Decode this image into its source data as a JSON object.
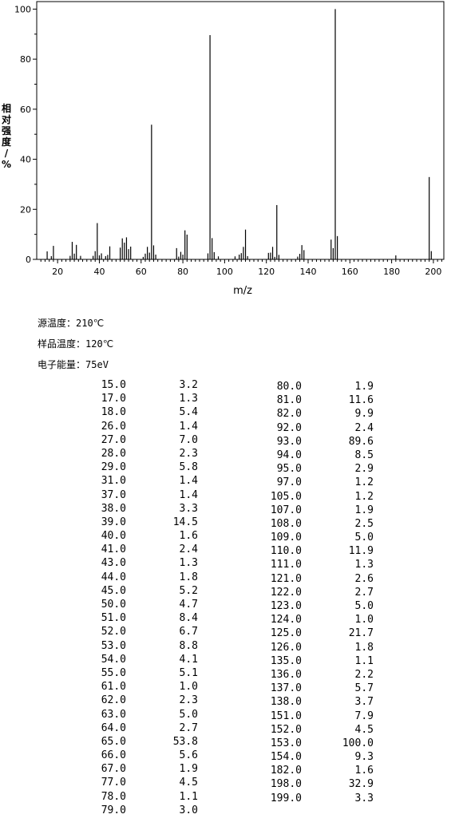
{
  "chart_data": {
    "type": "bar",
    "xlabel": "m/z",
    "ylabel": "相对强度/%",
    "xlim": [
      10,
      205
    ],
    "ylim": [
      0,
      103
    ],
    "xticks": [
      20,
      40,
      60,
      80,
      100,
      120,
      140,
      160,
      180,
      200
    ],
    "yticks": [
      0,
      20,
      40,
      60,
      80,
      100
    ],
    "x": [
      15.0,
      17.0,
      18.0,
      26.0,
      27.0,
      28.0,
      29.0,
      31.0,
      37.0,
      38.0,
      39.0,
      40.0,
      41.0,
      43.0,
      44.0,
      45.0,
      50.0,
      51.0,
      52.0,
      53.0,
      54.0,
      55.0,
      61.0,
      62.0,
      63.0,
      64.0,
      65.0,
      66.0,
      67.0,
      77.0,
      78.0,
      79.0,
      80.0,
      81.0,
      82.0,
      92.0,
      93.0,
      94.0,
      95.0,
      97.0,
      105.0,
      107.0,
      108.0,
      109.0,
      110.0,
      111.0,
      121.0,
      122.0,
      123.0,
      124.0,
      125.0,
      126.0,
      135.0,
      136.0,
      137.0,
      138.0,
      151.0,
      152.0,
      153.0,
      154.0,
      182.0,
      198.0,
      199.0
    ],
    "values": [
      3.2,
      1.3,
      5.4,
      1.4,
      7.0,
      2.3,
      5.8,
      1.4,
      1.4,
      3.3,
      14.5,
      1.6,
      2.4,
      1.3,
      1.8,
      5.2,
      4.7,
      8.4,
      6.7,
      8.8,
      4.1,
      5.1,
      1.0,
      2.3,
      5.0,
      2.7,
      53.8,
      5.6,
      1.9,
      4.5,
      1.1,
      3.0,
      1.9,
      11.6,
      9.9,
      2.4,
      89.6,
      8.5,
      2.9,
      1.2,
      1.2,
      1.9,
      2.5,
      5.0,
      11.9,
      1.3,
      2.6,
      2.7,
      5.0,
      1.0,
      21.7,
      1.8,
      1.1,
      2.2,
      5.7,
      3.7,
      7.9,
      4.5,
      100.0,
      9.3,
      1.6,
      32.9,
      3.3
    ]
  },
  "conditions": {
    "source_temp_label": "源温度：",
    "source_temp_value": "210℃",
    "sample_temp_label": "样品温度：",
    "sample_temp_value": "120℃",
    "electron_energy_label": "电子能量：",
    "electron_energy_value": "75eV"
  },
  "peak_table": {
    "left": [
      [
        "15.0",
        "3.2"
      ],
      [
        "17.0",
        "1.3"
      ],
      [
        "18.0",
        "5.4"
      ],
      [
        "26.0",
        "1.4"
      ],
      [
        "27.0",
        "7.0"
      ],
      [
        "28.0",
        "2.3"
      ],
      [
        "29.0",
        "5.8"
      ],
      [
        "31.0",
        "1.4"
      ],
      [
        "37.0",
        "1.4"
      ],
      [
        "38.0",
        "3.3"
      ],
      [
        "39.0",
        "14.5"
      ],
      [
        "40.0",
        "1.6"
      ],
      [
        "41.0",
        "2.4"
      ],
      [
        "43.0",
        "1.3"
      ],
      [
        "44.0",
        "1.8"
      ],
      [
        "45.0",
        "5.2"
      ],
      [
        "50.0",
        "4.7"
      ],
      [
        "51.0",
        "8.4"
      ],
      [
        "52.0",
        "6.7"
      ],
      [
        "53.0",
        "8.8"
      ],
      [
        "54.0",
        "4.1"
      ],
      [
        "55.0",
        "5.1"
      ],
      [
        "61.0",
        "1.0"
      ],
      [
        "62.0",
        "2.3"
      ],
      [
        "63.0",
        "5.0"
      ],
      [
        "64.0",
        "2.7"
      ],
      [
        "65.0",
        "53.8"
      ],
      [
        "66.0",
        "5.6"
      ],
      [
        "67.0",
        "1.9"
      ],
      [
        "77.0",
        "4.5"
      ],
      [
        "78.0",
        "1.1"
      ],
      [
        "79.0",
        "3.0"
      ]
    ],
    "right": [
      [
        "80.0",
        "1.9"
      ],
      [
        "81.0",
        "11.6"
      ],
      [
        "82.0",
        "9.9"
      ],
      [
        "92.0",
        "2.4"
      ],
      [
        "93.0",
        "89.6"
      ],
      [
        "94.0",
        "8.5"
      ],
      [
        "95.0",
        "2.9"
      ],
      [
        "97.0",
        "1.2"
      ],
      [
        "105.0",
        "1.2"
      ],
      [
        "107.0",
        "1.9"
      ],
      [
        "108.0",
        "2.5"
      ],
      [
        "109.0",
        "5.0"
      ],
      [
        "110.0",
        "11.9"
      ],
      [
        "111.0",
        "1.3"
      ],
      [
        "121.0",
        "2.6"
      ],
      [
        "122.0",
        "2.7"
      ],
      [
        "123.0",
        "5.0"
      ],
      [
        "124.0",
        "1.0"
      ],
      [
        "125.0",
        "21.7"
      ],
      [
        "126.0",
        "1.8"
      ],
      [
        "135.0",
        "1.1"
      ],
      [
        "136.0",
        "2.2"
      ],
      [
        "137.0",
        "5.7"
      ],
      [
        "138.0",
        "3.7"
      ],
      [
        "151.0",
        "7.9"
      ],
      [
        "152.0",
        "4.5"
      ],
      [
        "153.0",
        "100.0"
      ],
      [
        "154.0",
        "9.3"
      ],
      [
        "182.0",
        "1.6"
      ],
      [
        "198.0",
        "32.9"
      ],
      [
        "199.0",
        "3.3"
      ]
    ]
  }
}
